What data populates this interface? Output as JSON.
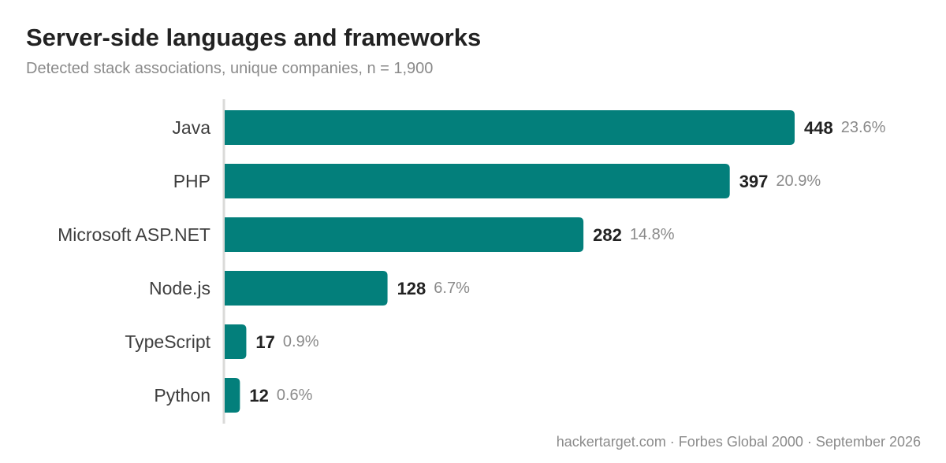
{
  "title": "Server-side languages and frameworks",
  "subtitle": "Detected stack associations, unique companies, n = 1,900",
  "footer": "hackertarget.com · Forbes Global 2000 · September 2026",
  "colors": {
    "bar": "#037f7b",
    "axis": "#dadad8",
    "label": "#3f3f3f",
    "value": "#222222",
    "percent": "#8a8a8a"
  },
  "chart_data": {
    "type": "bar",
    "orientation": "horizontal",
    "categories": [
      "Java",
      "PHP",
      "Microsoft ASP.NET",
      "Node.js",
      "TypeScript",
      "Python"
    ],
    "values": [
      448,
      397,
      282,
      128,
      17,
      12
    ],
    "percent_labels": [
      "23.6%",
      "20.9%",
      "14.8%",
      "6.7%",
      "0.9%",
      "0.6%"
    ],
    "xlim": [
      0,
      448
    ],
    "grid": false,
    "legend": "none"
  }
}
